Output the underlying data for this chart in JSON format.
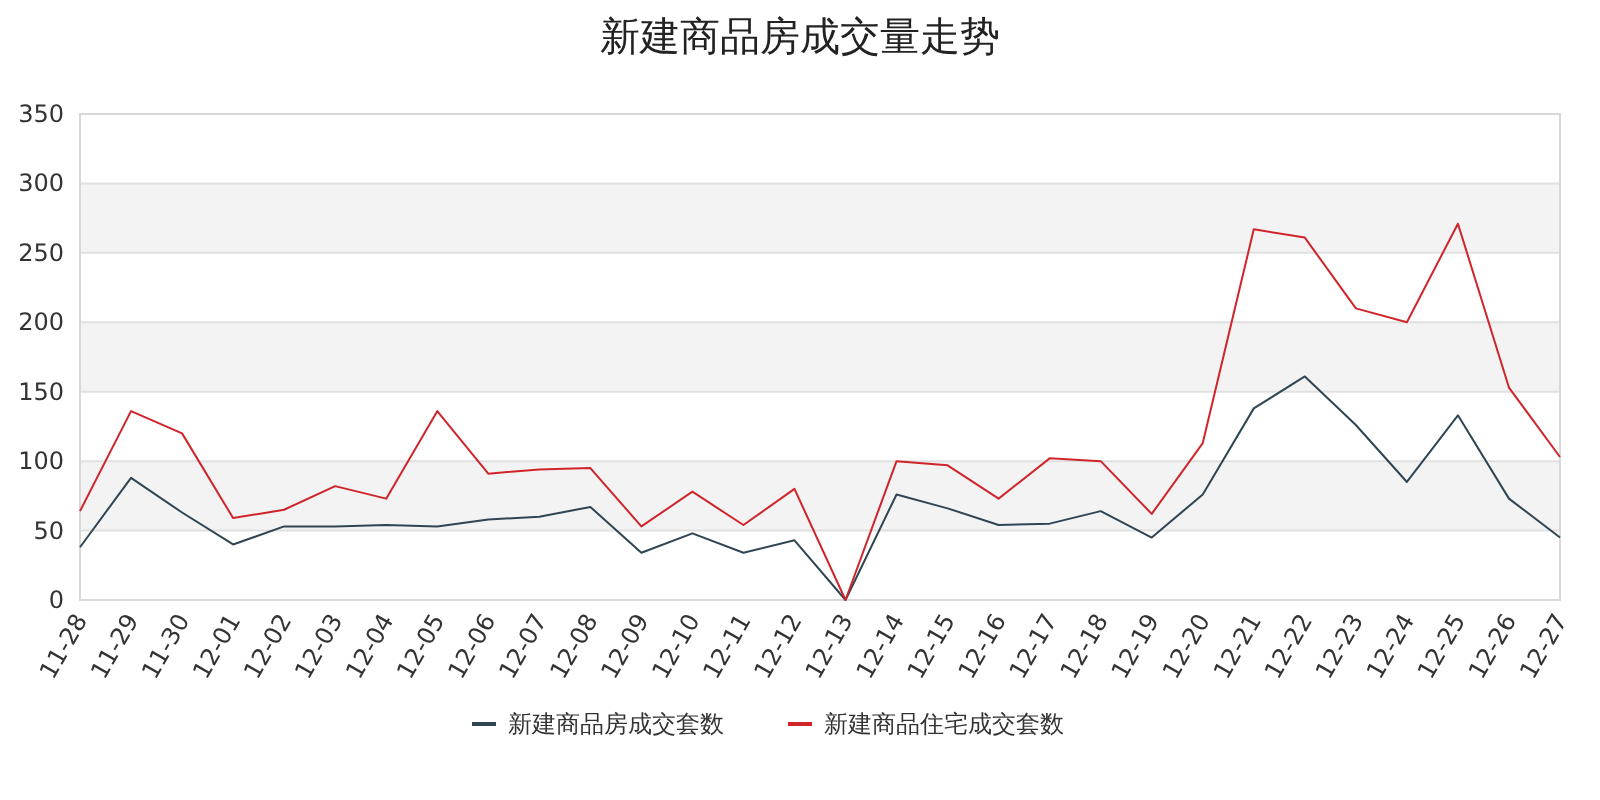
{
  "chart_data": {
    "type": "line",
    "title": "新建商品房成交量走势",
    "categories": [
      "11-28",
      "11-29",
      "11-30",
      "12-01",
      "12-02",
      "12-03",
      "12-04",
      "12-05",
      "12-06",
      "12-07",
      "12-08",
      "12-09",
      "12-10",
      "12-11",
      "12-12",
      "12-13",
      "12-14",
      "12-15",
      "12-16",
      "12-17",
      "12-18",
      "12-19",
      "12-20",
      "12-21",
      "12-22",
      "12-23",
      "12-24",
      "12-25",
      "12-26",
      "12-27"
    ],
    "series": [
      {
        "name": "新建商品房成交套数",
        "color": "#2f4554",
        "values": [
          38,
          88,
          63,
          40,
          53,
          53,
          54,
          53,
          58,
          60,
          67,
          34,
          48,
          34,
          43,
          0,
          76,
          66,
          54,
          55,
          64,
          45,
          76,
          138,
          161,
          126,
          85,
          133,
          73,
          45
        ]
      },
      {
        "name": "新建商品住宅成交套数",
        "color": "#d0242b",
        "values": [
          64,
          136,
          120,
          59,
          65,
          82,
          73,
          136,
          91,
          94,
          95,
          53,
          78,
          54,
          80,
          0,
          100,
          97,
          73,
          102,
          100,
          62,
          113,
          267,
          261,
          210,
          200,
          271,
          153,
          103
        ]
      }
    ],
    "ylim": [
      0,
      350
    ],
    "yticks": [
      0,
      50,
      100,
      150,
      200,
      250,
      300,
      350
    ],
    "grid": "y",
    "legend": "bottom",
    "marker": "none",
    "line_style": "solid"
  }
}
